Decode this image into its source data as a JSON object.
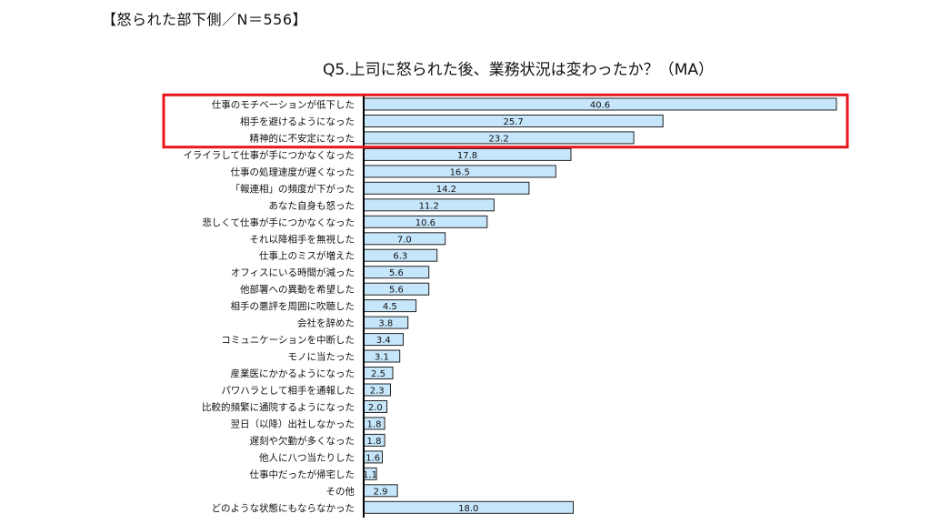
{
  "header": {
    "label": "【怒られた部下側／N＝556】"
  },
  "chart_data": {
    "type": "bar",
    "orientation": "horizontal",
    "title": "Q5.上司に怒られた後、業務状況は変わったか？（MA）",
    "xlim": [
      0,
      42
    ],
    "bar_color": "#c6e6fb",
    "bar_border_color": "#222222",
    "highlight_color": "#e8151b",
    "highlight_range": [
      0,
      2
    ],
    "categories": [
      "仕事のモチベーションが低下した",
      "相手を避けるようになった",
      "精神的に不安定になった",
      "イライラして仕事が手につかなくなった",
      "仕事の処理速度が遅くなった",
      "「報連相」の頻度が下がった",
      "あなた自身も怒った",
      "悲しくて仕事が手につかなくなった",
      "それ以降相手を無視した",
      "仕事上のミスが増えた",
      "オフィスにいる時間が減った",
      "他部署への異動を希望した",
      "相手の悪評を周囲に吹聴した",
      "会社を辞めた",
      "コミュニケーションを中断した",
      "モノに当たった",
      "産業医にかかるようになった",
      "パワハラとして相手を通報した",
      "比較的頻繁に通院するようになった",
      "翌日（以降）出社しなかった",
      "遅刻や欠勤が多くなった",
      "他人に八つ当たりした",
      "仕事中だったが帰宅した",
      "その他",
      "どのような状態にもならなかった"
    ],
    "values": [
      40.6,
      25.7,
      23.2,
      17.8,
      16.5,
      14.2,
      11.2,
      10.6,
      7.0,
      6.3,
      5.6,
      5.6,
      4.5,
      3.8,
      3.4,
      3.1,
      2.5,
      2.3,
      2.0,
      1.8,
      1.8,
      1.6,
      1.1,
      2.9,
      18.0
    ],
    "value_labels": [
      "40.6",
      "25.7",
      "23.2",
      "17.8",
      "16.5",
      "14.2",
      "11.2",
      "10.6",
      "7.0",
      "6.3",
      "5.6",
      "5.6",
      "4.5",
      "3.8",
      "3.4",
      "3.1",
      "2.5",
      "2.3",
      "2.0",
      "1.8",
      "1.8",
      "1.6",
      "1.1",
      "2.9",
      "18.0"
    ]
  }
}
